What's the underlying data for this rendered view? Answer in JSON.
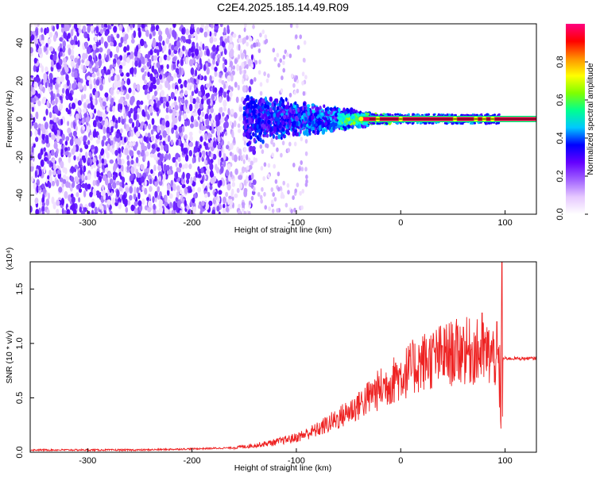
{
  "title": "C2E4.2025.185.14.49.R09",
  "chart_data": [
    {
      "type": "heatmap",
      "xlabel": "Height of straight line (km)",
      "ylabel": "Frequency (Hz)",
      "xlim": [
        -355,
        130
      ],
      "ylim": [
        -50,
        50
      ],
      "xticks": [
        -300,
        -200,
        -100,
        0,
        100
      ],
      "yticks": [
        -40,
        -20,
        0,
        20,
        40
      ],
      "signal_line_y": 0,
      "colorbar": {
        "label": "Normalized spectral amplitude",
        "range": [
          0,
          1
        ],
        "ticks": [
          0.0,
          0.2,
          0.4,
          0.6,
          0.8
        ],
        "colors": [
          "#ffffff",
          "#e6c8ff",
          "#a060ff",
          "#6400ff",
          "#0000ff",
          "#00c8ff",
          "#00ff90",
          "#80ff00",
          "#ffff00",
          "#ff9000",
          "#ff0000",
          "#ff0080"
        ]
      }
    },
    {
      "type": "line",
      "xlabel": "Height of straight line (km)",
      "ylabel": "SNR (10 * v/v)",
      "scale_note": "(x10⁴)",
      "xlim": [
        -355,
        130
      ],
      "ylim": [
        0,
        1.75
      ],
      "xticks": [
        -300,
        -200,
        -100,
        0,
        100
      ],
      "yticks": [
        0.0,
        0.5,
        1.0,
        1.5
      ],
      "line_color": "#ee2222",
      "envelope": {
        "x": [
          -355,
          -250,
          -200,
          -160,
          -140,
          -120,
          -100,
          -80,
          -60,
          -40,
          -20,
          0,
          20,
          40,
          60,
          80,
          94,
          98,
          100,
          130
        ],
        "y": [
          0.02,
          0.02,
          0.03,
          0.04,
          0.06,
          0.09,
          0.13,
          0.2,
          0.3,
          0.42,
          0.56,
          0.68,
          0.8,
          0.86,
          0.9,
          0.88,
          0.84,
          0.86,
          0.86,
          0.86
        ]
      },
      "peaks": [
        {
          "x": 97,
          "y": 1.75
        },
        {
          "x": 78,
          "y": 1.28
        },
        {
          "x": 60,
          "y": 1.15
        },
        {
          "x": 92,
          "y": 1.2
        },
        {
          "x": -5,
          "y": 0.82
        },
        {
          "x": -40,
          "y": 0.55
        },
        {
          "x": -26,
          "y": 0.62
        }
      ]
    }
  ]
}
